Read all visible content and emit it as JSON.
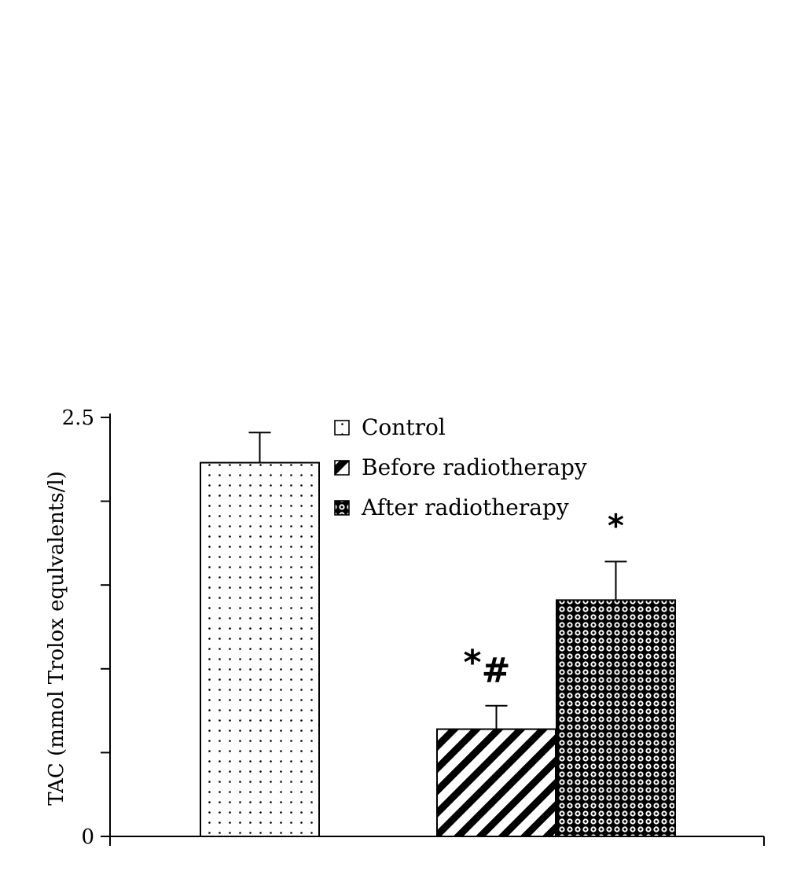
{
  "chart_data": {
    "type": "bar",
    "ylabel": "TAC (mmol Trolox equlvalents/l)",
    "ylim": [
      0,
      2.5
    ],
    "yticks": [
      {
        "value": 0,
        "label": "0"
      },
      {
        "value": 2.5,
        "label": "2.5"
      }
    ],
    "minor_tick_step": 0.5,
    "legend_position": "top-center",
    "series": [
      {
        "name": "Control",
        "value": 2.23,
        "error": 0.18,
        "pattern": "dots",
        "annotation": ""
      },
      {
        "name": "Before radiotherapy",
        "value": 0.64,
        "error": 0.14,
        "pattern": "stripes",
        "annotation": "*#"
      },
      {
        "name": "After radiotherapy",
        "value": 1.41,
        "error": 0.23,
        "pattern": "checker",
        "annotation": "*"
      }
    ]
  }
}
